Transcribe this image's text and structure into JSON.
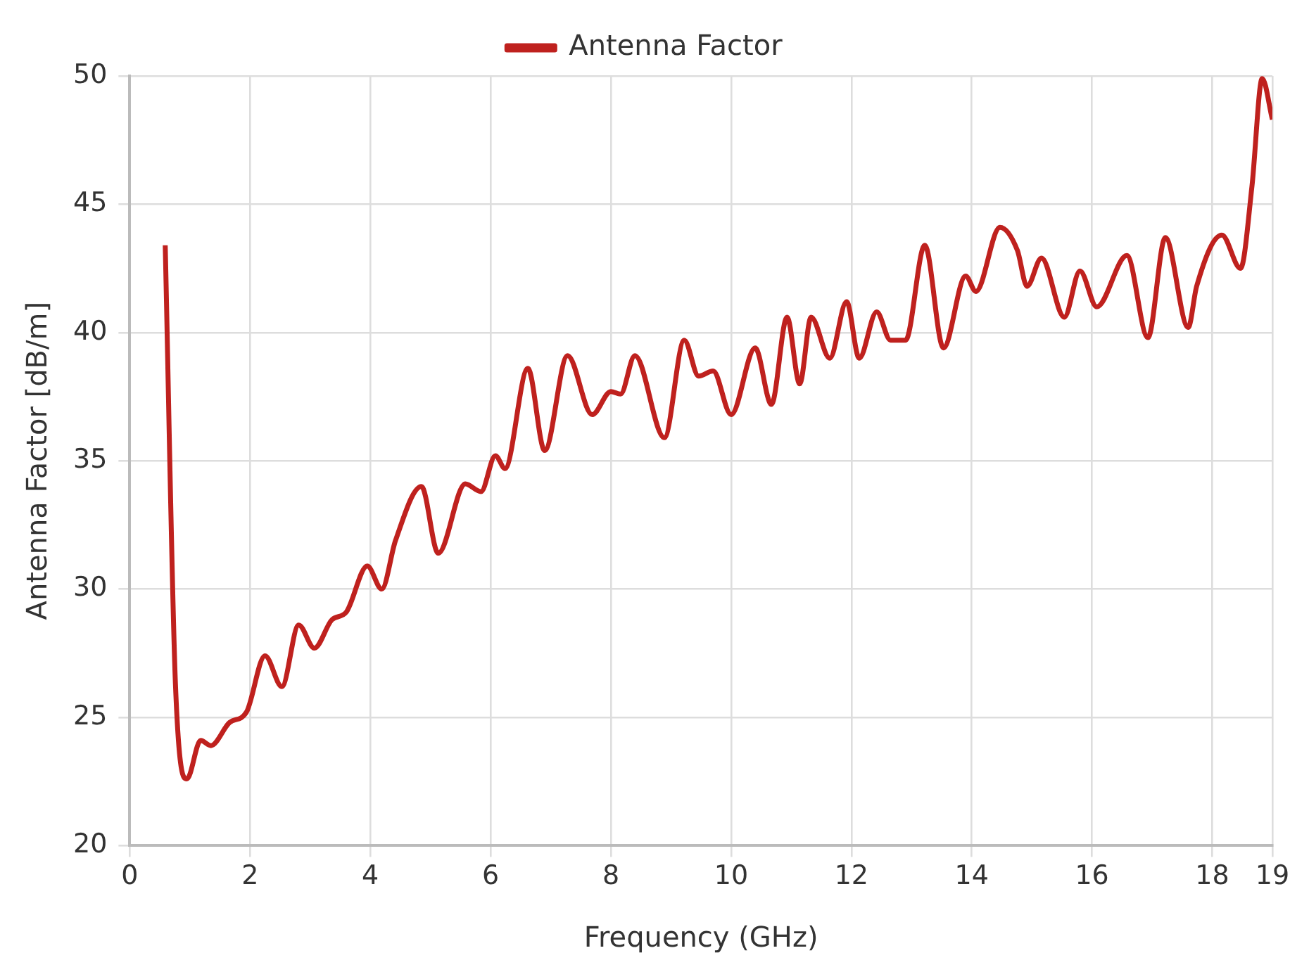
{
  "chart_data": {
    "type": "line",
    "xlabel": "Frequency (GHz)",
    "ylabel": "Antenna Factor [dB/m]",
    "xlim": [
      0,
      19
    ],
    "xticks": [
      0,
      2,
      4,
      6,
      8,
      10,
      12,
      14,
      16,
      18,
      19
    ],
    "ylim": [
      20,
      50
    ],
    "yticks": [
      20,
      25,
      30,
      35,
      40,
      45,
      50
    ],
    "grid": true,
    "legend": "top",
    "marker": "none",
    "series": [
      {
        "name": "Antenna Factor",
        "color": "#bf211e",
        "x": [
          0.59,
          0.76,
          0.95,
          1.18,
          1.35,
          1.66,
          1.94,
          2.25,
          2.53,
          2.81,
          3.07,
          3.36,
          3.6,
          3.95,
          4.19,
          4.42,
          4.85,
          5.13,
          5.58,
          5.84,
          6.08,
          6.24,
          6.62,
          6.9,
          7.28,
          7.69,
          8.0,
          8.16,
          8.4,
          8.89,
          9.22,
          9.46,
          9.7,
          10.0,
          10.4,
          10.67,
          10.93,
          11.14,
          11.33,
          11.64,
          11.92,
          12.13,
          12.42,
          12.65,
          12.9,
          13.22,
          13.53,
          13.9,
          14.07,
          14.47,
          14.76,
          14.92,
          15.16,
          15.54,
          15.8,
          16.08,
          16.58,
          16.93,
          17.22,
          17.6,
          17.74,
          18.16,
          18.47,
          18.66,
          18.83,
          19.0
        ],
        "values": [
          43.4,
          26.3,
          22.6,
          24.1,
          23.9,
          24.8,
          25.2,
          27.4,
          26.2,
          28.6,
          27.7,
          28.8,
          29.1,
          30.9,
          30.0,
          31.9,
          34.0,
          31.4,
          34.1,
          33.8,
          35.2,
          34.7,
          38.6,
          35.4,
          39.1,
          36.8,
          37.7,
          37.6,
          39.1,
          35.9,
          39.7,
          38.3,
          38.5,
          36.8,
          39.4,
          37.2,
          40.6,
          38.0,
          40.6,
          39.0,
          41.2,
          39.0,
          40.8,
          39.7,
          39.7,
          43.4,
          39.4,
          42.2,
          41.6,
          44.1,
          43.2,
          41.8,
          42.9,
          40.6,
          42.4,
          41.0,
          43.0,
          39.8,
          43.7,
          40.2,
          41.8,
          43.8,
          42.5,
          45.7,
          49.9,
          48.3
        ]
      }
    ]
  }
}
